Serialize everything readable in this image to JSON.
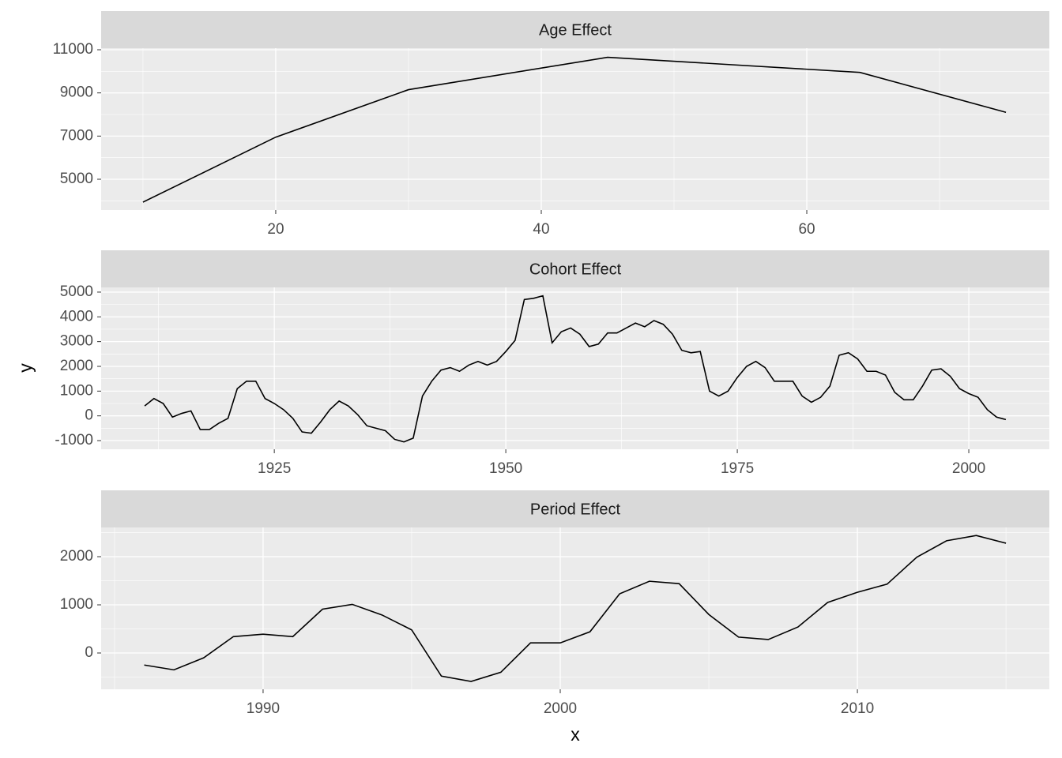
{
  "xlabel": "x",
  "ylabel": "y",
  "chart_data": [
    {
      "type": "line",
      "title": "Age Effect",
      "color": "#000000",
      "grid": true,
      "x": [
        10,
        20,
        30,
        45,
        64,
        75
      ],
      "values": [
        3940,
        6950,
        9150,
        10650,
        9950,
        8100
      ],
      "xlim": [
        6.85,
        78.27
      ],
      "ylim": [
        3574,
        11073
      ],
      "xticks": [
        20,
        40,
        60
      ],
      "yticks": [
        5000,
        7000,
        9000,
        11000
      ]
    },
    {
      "type": "line",
      "title": "Cohort Effect",
      "color": "#000000",
      "grid": true,
      "x": [
        1911,
        1912,
        1913,
        1914,
        1915,
        1916,
        1917,
        1918,
        1919,
        1920,
        1921,
        1922,
        1923,
        1924,
        1925,
        1926,
        1927,
        1928,
        1929,
        1930,
        1931,
        1932,
        1933,
        1934,
        1935,
        1936,
        1937,
        1938,
        1939,
        1940,
        1941,
        1942,
        1943,
        1944,
        1945,
        1946,
        1947,
        1948,
        1949,
        1950,
        1951,
        1952,
        1953,
        1954,
        1955,
        1956,
        1957,
        1958,
        1959,
        1960,
        1961,
        1962,
        1963,
        1964,
        1965,
        1966,
        1967,
        1968,
        1969,
        1970,
        1971,
        1972,
        1973,
        1974,
        1975,
        1976,
        1977,
        1978,
        1979,
        1980,
        1981,
        1982,
        1983,
        1984,
        1985,
        1986,
        1987,
        1988,
        1989,
        1990,
        1991,
        1992,
        1993,
        1994,
        1995,
        1996,
        1997,
        1998,
        1999,
        2000,
        2001,
        2002,
        2003,
        2004
      ],
      "values": [
        400,
        700,
        500,
        -50,
        100,
        200,
        -550,
        -550,
        -300,
        -100,
        1100,
        1400,
        1400,
        700,
        500,
        250,
        -100,
        -650,
        -700,
        -250,
        250,
        600,
        400,
        50,
        -400,
        -500,
        -600,
        -950,
        -1050,
        -900,
        800,
        1400,
        1850,
        1950,
        1800,
        2050,
        2200,
        2050,
        2200,
        2600,
        3050,
        4700,
        4750,
        4850,
        2950,
        3400,
        3550,
        3300,
        2800,
        2900,
        3350,
        3350,
        3550,
        3750,
        3600,
        3850,
        3700,
        3300,
        2650,
        2550,
        2600,
        1000,
        800,
        1000,
        1550,
        2000,
        2200,
        1950,
        1400,
        1400,
        1400,
        800,
        550,
        750,
        1200,
        2450,
        2550,
        2300,
        1800,
        1800,
        1650,
        950,
        650,
        650,
        1200,
        1850,
        1900,
        1600,
        1100,
        900,
        750,
        250,
        -50,
        -150
      ],
      "xlim": [
        1906.3,
        2008.7
      ],
      "ylim": [
        -1350,
        5190
      ],
      "xticks": [
        1925,
        1950,
        1975,
        2000
      ],
      "yticks": [
        -1000,
        0,
        1000,
        2000,
        3000,
        4000,
        5000
      ]
    },
    {
      "type": "line",
      "title": "Period Effect",
      "color": "#000000",
      "grid": true,
      "x": [
        1986,
        1987,
        1988,
        1989,
        1990,
        1991,
        1992,
        1993,
        1994,
        1995,
        1996,
        1997,
        1998,
        1999,
        2000,
        2001,
        2002,
        2003,
        2004,
        2005,
        2006,
        2007,
        2008,
        2009,
        2010,
        2011,
        2012,
        2013,
        2014,
        2015
      ],
      "values": [
        -250,
        -350,
        -100,
        340,
        390,
        340,
        910,
        1010,
        790,
        480,
        -480,
        -590,
        -400,
        210,
        210,
        440,
        1230,
        1490,
        1440,
        800,
        330,
        280,
        540,
        1050,
        1260,
        1430,
        1990,
        2330,
        2440,
        2280
      ],
      "xlim": [
        1984.55,
        2016.46
      ],
      "ylim": [
        -754,
        2607
      ],
      "xticks": [
        1990,
        2000,
        2010
      ],
      "yticks": [
        0,
        1000,
        2000
      ]
    }
  ]
}
